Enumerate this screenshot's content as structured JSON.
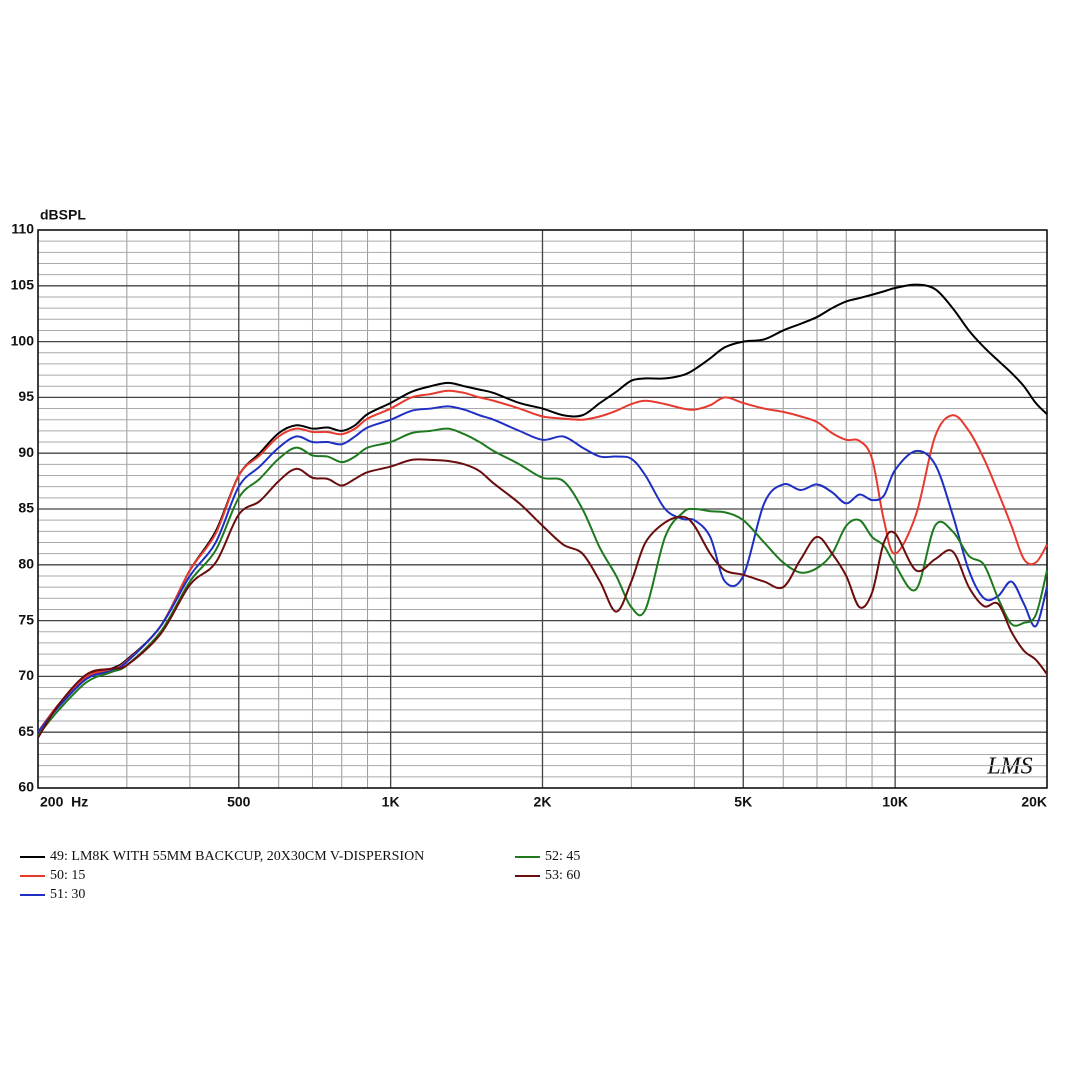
{
  "chart_data": {
    "type": "line",
    "y_label": "dBSPL",
    "annotation": "LMS",
    "x_log": true,
    "grid": true,
    "minor_grid": true,
    "xlim": [
      200,
      20000
    ],
    "ylim": [
      60,
      110
    ],
    "xticks": [
      {
        "value": 200,
        "label": "200  Hz"
      },
      500,
      {
        "value": 1000,
        "label": "1K"
      },
      {
        "value": 2000,
        "label": "2K"
      },
      {
        "value": 5000,
        "label": "5K"
      },
      {
        "value": 10000,
        "label": "10K"
      },
      {
        "value": 20000,
        "label": "20K"
      }
    ],
    "yticks": [
      60,
      65,
      70,
      75,
      80,
      85,
      90,
      95,
      100,
      105,
      110
    ],
    "x": [
      200,
      220,
      250,
      280,
      300,
      350,
      400,
      450,
      500,
      550,
      600,
      650,
      700,
      750,
      800,
      850,
      900,
      1000,
      1100,
      1200,
      1300,
      1400,
      1500,
      1600,
      1800,
      2000,
      2200,
      2400,
      2600,
      2800,
      3000,
      3200,
      3500,
      3800,
      4000,
      4300,
      4600,
      5000,
      5500,
      6000,
      6500,
      7000,
      7500,
      8000,
      8500,
      9000,
      9500,
      10000,
      11000,
      12000,
      13000,
      14000,
      15000,
      16000,
      17000,
      18000,
      19000,
      20000
    ],
    "series": [
      {
        "name": "49: LM8K WITH 55MM BACKCUP, 20X30CM V-DISPERSION",
        "color": "#000000",
        "values": [
          65,
          67.5,
          70,
          70.7,
          71.5,
          74.5,
          79.5,
          83,
          88,
          90,
          91.8,
          92.5,
          92.2,
          92.3,
          92,
          92.5,
          93.5,
          94.5,
          95.5,
          96,
          96.3,
          96,
          95.7,
          95.4,
          94.5,
          94,
          93.4,
          93.4,
          94.5,
          95.5,
          96.5,
          96.7,
          96.7,
          97,
          97.5,
          98.5,
          99.5,
          100,
          100.2,
          101,
          101.6,
          102.2,
          103,
          103.6,
          103.9,
          104.2,
          104.5,
          104.8,
          105.1,
          104.7,
          103,
          101,
          99.5,
          98.3,
          97.2,
          96,
          94.5,
          93.5
        ]
      },
      {
        "name": "50: 15",
        "color": "#e8392f",
        "values": [
          65,
          67.5,
          70,
          70.6,
          71.4,
          74.5,
          79.5,
          82.8,
          88,
          89.8,
          91.5,
          92.2,
          91.9,
          91.9,
          91.7,
          92.2,
          93.1,
          94,
          95,
          95.3,
          95.6,
          95.4,
          95,
          94.7,
          94,
          93.3,
          93.1,
          93,
          93.3,
          93.8,
          94.4,
          94.7,
          94.4,
          94,
          93.9,
          94.3,
          95,
          94.5,
          94,
          93.7,
          93.3,
          92.8,
          91.8,
          91.2,
          91.1,
          89.5,
          84,
          81,
          84.5,
          91.5,
          93.4,
          92,
          89.5,
          86.5,
          83.5,
          80.5,
          80.2,
          81.8
        ]
      },
      {
        "name": "51: 30",
        "color": "#1f2fc4",
        "values": [
          65,
          67.3,
          69.8,
          70.5,
          71.3,
          74.5,
          79,
          82,
          87,
          88.8,
          90.5,
          91.5,
          91,
          91,
          90.8,
          91.5,
          92.3,
          93,
          93.8,
          94,
          94.2,
          93.9,
          93.4,
          93,
          92,
          91.2,
          91.5,
          90.5,
          89.7,
          89.7,
          89.5,
          88,
          85,
          84.1,
          84,
          82.5,
          78.5,
          79,
          85.5,
          87.2,
          86.7,
          87.2,
          86.5,
          85.5,
          86.3,
          85.8,
          86.2,
          88.5,
          90.2,
          89,
          84.5,
          79.5,
          77,
          77.2,
          78.5,
          76.5,
          74.5,
          78
        ]
      },
      {
        "name": "52: 45",
        "color": "#1e7a1e",
        "values": [
          64.7,
          67,
          69.5,
          70.4,
          71,
          74,
          78.5,
          81.3,
          86,
          87.7,
          89.5,
          90.5,
          89.8,
          89.7,
          89.2,
          89.7,
          90.5,
          91,
          91.8,
          92,
          92.2,
          91.7,
          91,
          90.2,
          89,
          87.8,
          87.5,
          85,
          81.5,
          79,
          76.2,
          76,
          82.5,
          84.7,
          85,
          84.8,
          84.7,
          84,
          82,
          80.2,
          79.3,
          79.7,
          81,
          83.5,
          84,
          82.5,
          81.7,
          80,
          77.8,
          83.5,
          83,
          80.8,
          80,
          77,
          74.7,
          74.8,
          75.5,
          79.5
        ]
      },
      {
        "name": "53: 60",
        "color": "#6b0d0d",
        "values": [
          64.5,
          67.5,
          70.2,
          70.7,
          71,
          73.8,
          78.2,
          80.2,
          84.5,
          85.7,
          87.5,
          88.6,
          87.8,
          87.7,
          87.1,
          87.7,
          88.3,
          88.8,
          89.4,
          89.4,
          89.3,
          89,
          88.4,
          87.3,
          85.5,
          83.5,
          81.8,
          81,
          78.5,
          75.8,
          78.5,
          82,
          83.8,
          84.3,
          83.5,
          81,
          79.5,
          79.1,
          78.5,
          78,
          80.5,
          82.5,
          81,
          79,
          76.2,
          77.5,
          82,
          82.8,
          79.5,
          80.5,
          81.2,
          78,
          76.3,
          76.5,
          74,
          72.3,
          71.5,
          70.2
        ]
      }
    ]
  }
}
